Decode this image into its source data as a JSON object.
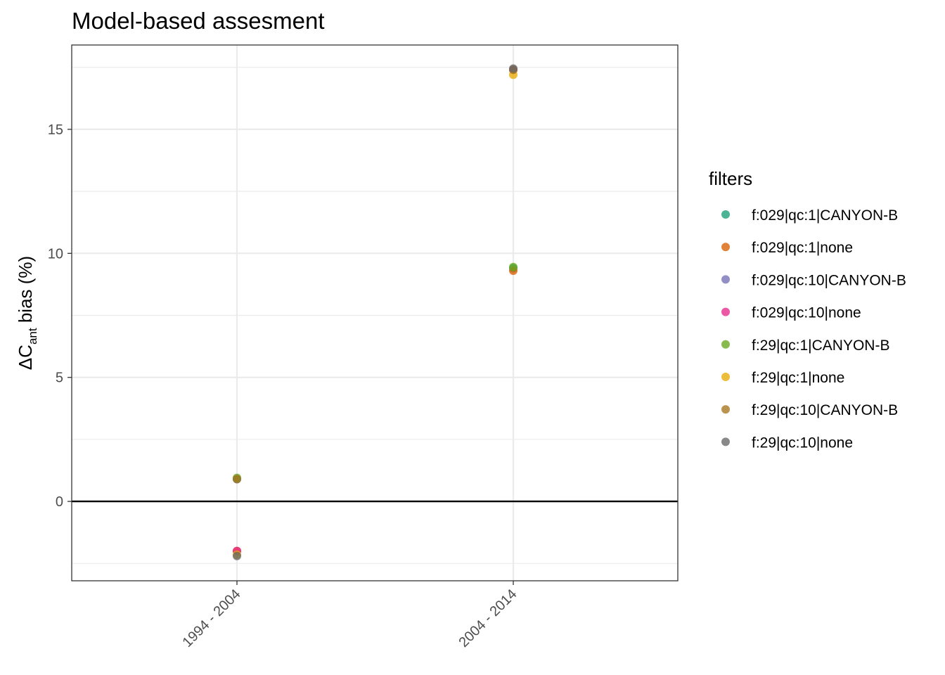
{
  "chart_data": {
    "type": "scatter",
    "title": "Model-based assesment",
    "xlabel": "",
    "ylabel": {
      "main": "ΔC",
      "subscript": "ant",
      "suffix": " bias (%)"
    },
    "categories": [
      "1994 - 2004",
      "2004 - 2014"
    ],
    "ylim": [
      -3.2,
      18.4
    ],
    "yticks": [
      0,
      5,
      10,
      15
    ],
    "ytick_labels": [
      "0",
      "5",
      "10",
      "15"
    ],
    "hline": 0,
    "grid": true,
    "legend": {
      "title": "filters",
      "position": "right"
    },
    "series": [
      {
        "name": "f:029|qc:1|CANYON-B",
        "color": "#1b9e77",
        "values": [
          0.9,
          9.4
        ]
      },
      {
        "name": "f:029|qc:1|none",
        "color": "#d95f02",
        "values": [
          -2.0,
          9.3
        ]
      },
      {
        "name": "f:029|qc:10|CANYON-B",
        "color": "#7570b3",
        "values": [
          0.9,
          17.4
        ]
      },
      {
        "name": "f:029|qc:10|none",
        "color": "#e7298a",
        "values": [
          -2.0,
          17.4
        ]
      },
      {
        "name": "f:29|qc:1|CANYON-B",
        "color": "#66a61e",
        "values": [
          0.95,
          9.45
        ]
      },
      {
        "name": "f:29|qc:1|none",
        "color": "#e6ab02",
        "values": [
          -2.15,
          17.2
        ]
      },
      {
        "name": "f:29|qc:10|CANYON-B",
        "color": "#a6761d",
        "values": [
          0.9,
          17.4
        ]
      },
      {
        "name": "f:29|qc:10|none",
        "color": "#666666",
        "values": [
          -2.2,
          17.45
        ]
      }
    ]
  }
}
